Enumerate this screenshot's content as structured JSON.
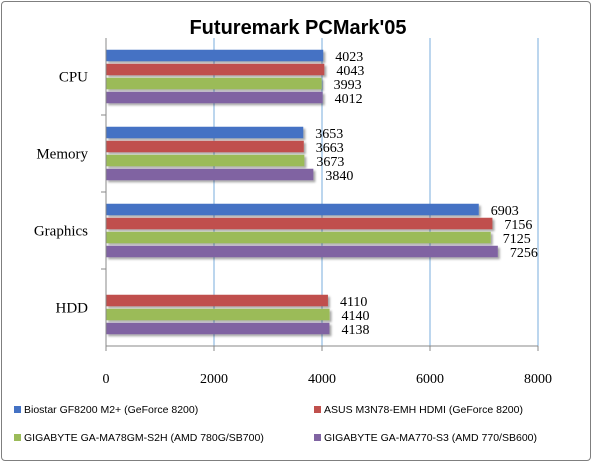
{
  "chart_data": {
    "type": "bar",
    "orientation": "horizontal",
    "title": "Futuremark PCMark'05",
    "categories": [
      "CPU",
      "Memory",
      "Graphics",
      "HDD"
    ],
    "series": [
      {
        "name": "Biostar GF8200 M2+ (GeForce 8200)",
        "color": "#4472c4",
        "values": [
          4023,
          3653,
          6903,
          null
        ]
      },
      {
        "name": "ASUS M3N78-EMH HDMI (GeForce 8200)",
        "color": "#c0504d",
        "values": [
          4043,
          3663,
          7156,
          4110
        ]
      },
      {
        "name": "GIGABYTE GA-MA78GM-S2H (AMD 780G/SB700)",
        "color": "#9bbb59",
        "values": [
          3993,
          3673,
          7125,
          4140
        ]
      },
      {
        "name": "GIGABYTE GA-MA770-S3 (AMD 770/SB600)",
        "color": "#8064a2",
        "values": [
          4012,
          3840,
          7256,
          4138
        ]
      }
    ],
    "xlim": [
      0,
      8000
    ],
    "xticks": [
      0,
      2000,
      4000,
      6000,
      8000
    ],
    "grid": true,
    "legend_position": "bottom"
  }
}
